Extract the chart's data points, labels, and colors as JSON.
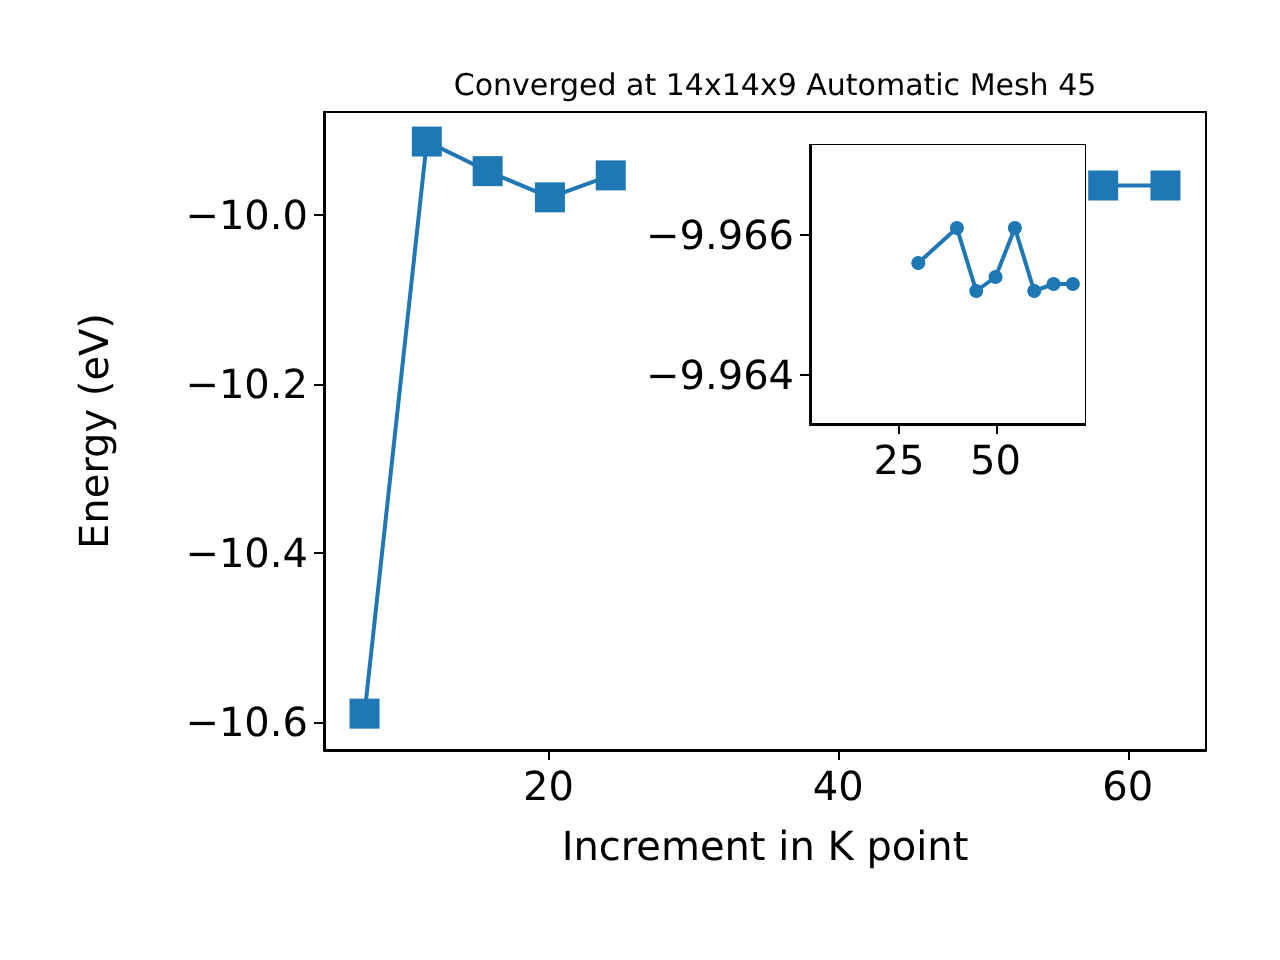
{
  "chart_data": [
    {
      "type": "line",
      "title": "Converged at 14x14x9 Automatic Mesh 45",
      "xlabel": "Increment in K point",
      "ylabel": "Energy (eV)",
      "x": [
        7.3,
        11.6,
        15.8,
        20.1,
        24.3,
        28.6,
        32.8,
        37.1,
        41.3,
        45.6,
        49.8,
        54.1,
        58.3,
        62.6
      ],
      "series": [
        {
          "color": "#1f77b4",
          "values": [
            -10.59,
            -9.913,
            -9.948,
            -9.979,
            -9.953,
            null,
            null,
            null,
            null,
            null,
            null,
            null,
            -9.965,
            -9.965
          ]
        }
      ],
      "xlim": [
        4.5,
        65.4
      ],
      "xticks": [
        20,
        40,
        60
      ],
      "ylim": [
        -10.633,
        -9.878
      ],
      "yticks": [
        {
          "value": -10.6,
          "label": "−10.6"
        },
        {
          "value": -10.4,
          "label": "−10.4"
        },
        {
          "value": -10.2,
          "label": "−10.2"
        },
        {
          "value": -10.0,
          "label": "−10.0"
        }
      ],
      "marker": "square"
    },
    {
      "type": "line",
      "x": [
        30,
        40,
        45,
        50,
        55,
        60,
        65,
        70
      ],
      "series": [
        {
          "color": "#1f77b4",
          "values": [
            -9.9656,
            -9.9661,
            -9.9652,
            -9.9654,
            -9.9661,
            -9.9652,
            -9.9653,
            -9.9653
          ]
        }
      ],
      "xlim": [
        2,
        73.4
      ],
      "xticks": [
        25,
        50
      ],
      "ylim": [
        -9.9633,
        -9.9673
      ],
      "yticks": [
        {
          "value": -9.966,
          "label": "−9.966"
        },
        {
          "value": -9.964,
          "label": "−9.964"
        }
      ],
      "marker": "circle"
    }
  ]
}
